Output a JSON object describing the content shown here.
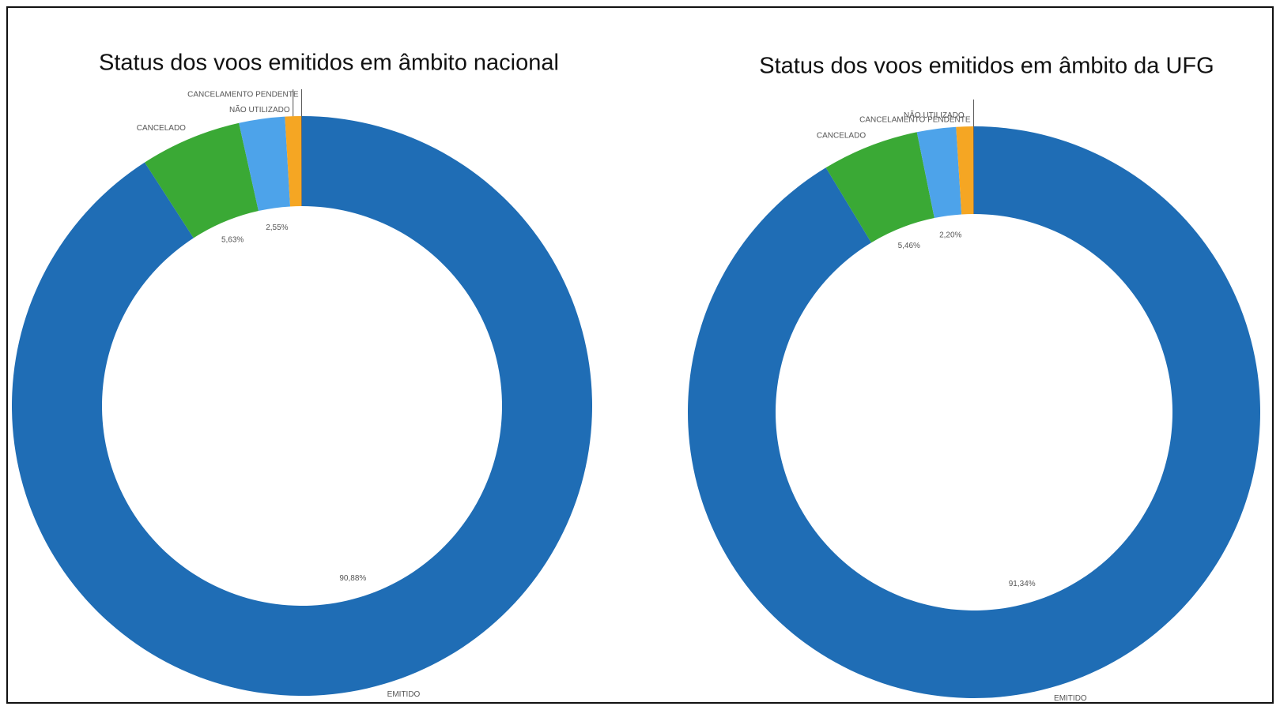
{
  "chart_data": [
    {
      "type": "donut",
      "title": "Status dos voos emitidos em âmbito nacional",
      "categories": [
        "EMITIDO",
        "CANCELADO",
        null,
        "NÃO UTILIZADO",
        "CANCELAMENTO PENDENTE"
      ],
      "values": [
        90.88,
        5.63,
        2.55,
        0.9,
        0.04
      ],
      "value_labels": [
        "90,88%",
        "5,63%",
        "2,55%",
        null,
        null
      ],
      "colors": [
        "#1f6db5",
        "#3aa935",
        "#4da3ea",
        "#f5a623",
        "#555555"
      ]
    },
    {
      "type": "donut",
      "title": "Status dos voos emitidos em âmbito da UFG",
      "categories": [
        "EMITIDO",
        "CANCELADO",
        null,
        "NÃO UTILIZADO",
        "CANCELAMENTO PENDENTE"
      ],
      "values": [
        91.34,
        5.46,
        2.2,
        0.96,
        0.04
      ],
      "value_labels": [
        "91,34%",
        "5,46%",
        "2,20%",
        null,
        null
      ],
      "colors": [
        "#1f6db5",
        "#3aa935",
        "#4da3ea",
        "#f5a623",
        "#555555"
      ]
    }
  ]
}
